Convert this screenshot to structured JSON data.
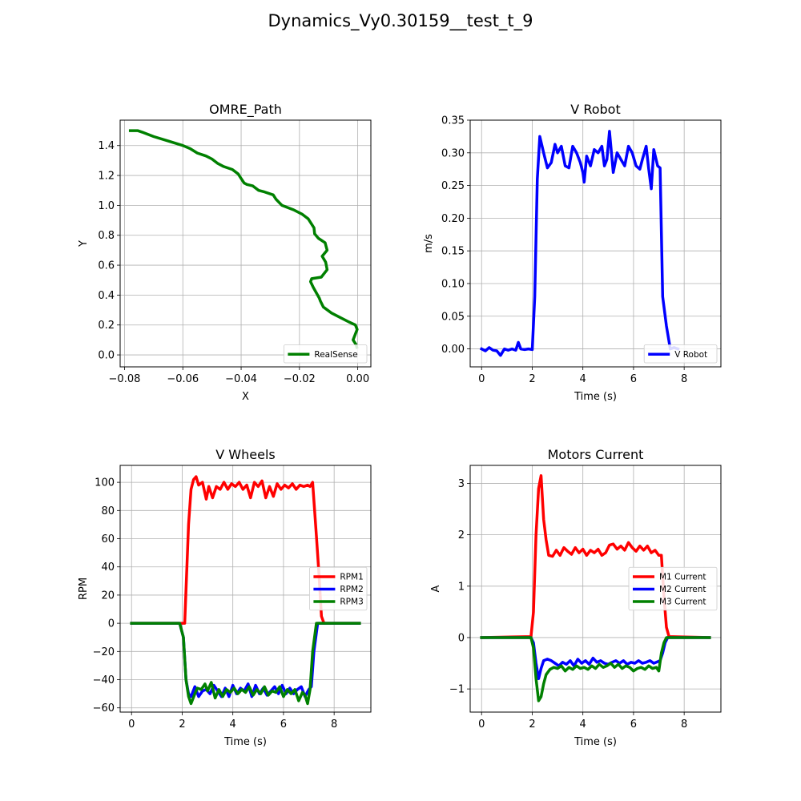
{
  "suptitle": "Dynamics_Vy0.30159__test_t_9",
  "chart_data": [
    {
      "type": "line",
      "title": "OMRE_Path",
      "xlabel": "X",
      "ylabel": "Y",
      "xlim": [
        -0.0815,
        0.0045
      ],
      "ylim": [
        -0.08,
        1.57
      ],
      "xticks": [
        -0.08,
        -0.06,
        -0.04,
        -0.02,
        0.0
      ],
      "xtick_labels": [
        "−0.08",
        "−0.06",
        "−0.04",
        "−0.02",
        "0.00"
      ],
      "yticks": [
        0.0,
        0.2,
        0.4,
        0.6,
        0.8,
        1.0,
        1.2,
        1.4
      ],
      "ytick_labels": [
        "0.0",
        "0.2",
        "0.4",
        "0.6",
        "0.8",
        "1.0",
        "1.2",
        "1.4"
      ],
      "grid": true,
      "legend_position": "lower-right",
      "series": [
        {
          "name": "RealSense",
          "color": "#008000",
          "x": [
            -0.078,
            -0.0755,
            -0.074,
            -0.07,
            -0.065,
            -0.06,
            -0.0575,
            -0.055,
            -0.052,
            -0.05,
            -0.048,
            -0.046,
            -0.043,
            -0.041,
            -0.04,
            -0.039,
            -0.038,
            -0.036,
            -0.034,
            -0.032,
            -0.029,
            -0.028,
            -0.027,
            -0.026,
            -0.022,
            -0.019,
            -0.017,
            -0.016,
            -0.015,
            -0.0148,
            -0.0135,
            -0.0112,
            -0.0105,
            -0.0122,
            -0.011,
            -0.0105,
            -0.0125,
            -0.0158,
            -0.0162,
            -0.0152,
            -0.0132,
            -0.0128,
            -0.0118,
            -0.009,
            -0.006,
            -0.003,
            -0.0008,
            -0.0002,
            -0.0016,
            -0.0006,
            -0.0003
          ],
          "y": [
            1.5,
            1.5,
            1.49,
            1.46,
            1.43,
            1.4,
            1.38,
            1.35,
            1.33,
            1.31,
            1.28,
            1.26,
            1.24,
            1.21,
            1.18,
            1.15,
            1.14,
            1.13,
            1.1,
            1.09,
            1.07,
            1.04,
            1.02,
            1.0,
            0.97,
            0.94,
            0.91,
            0.88,
            0.85,
            0.81,
            0.78,
            0.75,
            0.7,
            0.66,
            0.62,
            0.57,
            0.52,
            0.51,
            0.49,
            0.45,
            0.38,
            0.36,
            0.32,
            0.28,
            0.25,
            0.22,
            0.2,
            0.17,
            0.1,
            0.07,
            0.05
          ]
        }
      ]
    },
    {
      "type": "line",
      "title": "V Robot",
      "xlabel": "Time (s)",
      "ylabel": "m/s",
      "xlim": [
        -0.45,
        9.45
      ],
      "ylim": [
        -0.0275,
        0.35
      ],
      "xticks": [
        0,
        2,
        4,
        6,
        8
      ],
      "xtick_labels": [
        "0",
        "2",
        "4",
        "6",
        "8"
      ],
      "yticks": [
        0.0,
        0.05,
        0.1,
        0.15,
        0.2,
        0.25,
        0.3,
        0.35
      ],
      "ytick_labels": [
        "0.00",
        "0.05",
        "0.10",
        "0.15",
        "0.20",
        "0.25",
        "0.30",
        "0.35"
      ],
      "grid": true,
      "legend_position": "lower-right",
      "series": [
        {
          "name": "V Robot",
          "color": "#0000ff",
          "x": [
            0.0,
            0.15,
            0.3,
            0.45,
            0.6,
            0.75,
            0.9,
            1.05,
            1.2,
            1.35,
            1.45,
            1.55,
            1.7,
            1.85,
            2.0,
            2.1,
            2.2,
            2.3,
            2.45,
            2.6,
            2.75,
            2.9,
            3.0,
            3.15,
            3.3,
            3.45,
            3.6,
            3.75,
            3.9,
            4.0,
            4.05,
            4.15,
            4.3,
            4.45,
            4.6,
            4.75,
            4.85,
            4.95,
            5.05,
            5.2,
            5.35,
            5.5,
            5.65,
            5.8,
            5.95,
            6.1,
            6.25,
            6.35,
            6.5,
            6.6,
            6.7,
            6.8,
            6.95,
            7.05,
            7.15,
            7.3,
            7.45,
            7.6,
            7.75
          ],
          "y": [
            0.0,
            -0.003,
            0.002,
            -0.002,
            -0.003,
            -0.01,
            0.0,
            -0.002,
            0.0,
            -0.002,
            0.01,
            0.0,
            -0.001,
            0.0,
            -0.001,
            0.08,
            0.26,
            0.325,
            0.3,
            0.277,
            0.285,
            0.313,
            0.3,
            0.31,
            0.28,
            0.277,
            0.31,
            0.3,
            0.285,
            0.27,
            0.255,
            0.295,
            0.28,
            0.305,
            0.3,
            0.31,
            0.28,
            0.29,
            0.333,
            0.27,
            0.3,
            0.29,
            0.28,
            0.31,
            0.3,
            0.28,
            0.275,
            0.29,
            0.31,
            0.275,
            0.245,
            0.305,
            0.28,
            0.277,
            0.08,
            0.035,
            0.0,
            0.002,
            0.0
          ]
        }
      ]
    },
    {
      "type": "line",
      "title": "V Wheels",
      "xlabel": "Time (s)",
      "ylabel": "RPM",
      "xlim": [
        -0.45,
        9.45
      ],
      "ylim": [
        -63,
        112
      ],
      "xticks": [
        0,
        2,
        4,
        6,
        8
      ],
      "xtick_labels": [
        "0",
        "2",
        "4",
        "6",
        "8"
      ],
      "yticks": [
        -60,
        -40,
        -20,
        0,
        20,
        40,
        60,
        80,
        100
      ],
      "ytick_labels": [
        "−60",
        "−40",
        "−20",
        "0",
        "20",
        "40",
        "60",
        "80",
        "100"
      ],
      "grid": true,
      "legend_position": "center-right",
      "series": [
        {
          "name": "RPM1",
          "color": "#ff0000",
          "x": [
            0,
            1.95,
            2.1,
            2.25,
            2.35,
            2.45,
            2.55,
            2.65,
            2.8,
            2.95,
            3.05,
            3.2,
            3.35,
            3.5,
            3.65,
            3.8,
            3.95,
            4.1,
            4.25,
            4.4,
            4.55,
            4.7,
            4.85,
            5.0,
            5.15,
            5.3,
            5.45,
            5.6,
            5.75,
            5.9,
            6.05,
            6.2,
            6.35,
            6.5,
            6.65,
            6.8,
            6.95,
            7.05,
            7.15,
            7.3,
            7.4,
            7.5,
            7.6,
            9.0
          ],
          "y": [
            0,
            0,
            0,
            70,
            95,
            102,
            104,
            98,
            100,
            88,
            97,
            89,
            97,
            95,
            100,
            95,
            99,
            97,
            100,
            95,
            98,
            89,
            100,
            97,
            101,
            89,
            97,
            90,
            99,
            95,
            98,
            96,
            99,
            95,
            98,
            97,
            98,
            97,
            100,
            62,
            35,
            5,
            0,
            0
          ]
        },
        {
          "name": "RPM2",
          "color": "#0000ff",
          "x": [
            0,
            1.9,
            2.05,
            2.15,
            2.25,
            2.35,
            2.5,
            2.65,
            2.8,
            2.95,
            3.1,
            3.25,
            3.4,
            3.55,
            3.7,
            3.85,
            4.0,
            4.15,
            4.3,
            4.45,
            4.6,
            4.75,
            4.9,
            5.05,
            5.2,
            5.35,
            5.5,
            5.65,
            5.8,
            5.95,
            6.1,
            6.25,
            6.4,
            6.55,
            6.7,
            6.85,
            7.0,
            7.1,
            7.2,
            7.35,
            9.0
          ],
          "y": [
            0,
            0,
            -10,
            -40,
            -50,
            -52,
            -45,
            -52,
            -48,
            -47,
            -50,
            -44,
            -48,
            -52,
            -46,
            -52,
            -44,
            -50,
            -46,
            -48,
            -43,
            -52,
            -44,
            -50,
            -46,
            -51,
            -48,
            -45,
            -50,
            -44,
            -50,
            -46,
            -50,
            -47,
            -45,
            -52,
            -47,
            -45,
            -20,
            0,
            0
          ]
        },
        {
          "name": "RPM3",
          "color": "#008000",
          "x": [
            0,
            1.9,
            2.05,
            2.15,
            2.25,
            2.35,
            2.5,
            2.6,
            2.75,
            2.9,
            3.0,
            3.15,
            3.3,
            3.45,
            3.6,
            3.75,
            3.9,
            4.05,
            4.2,
            4.35,
            4.5,
            4.65,
            4.8,
            4.95,
            5.1,
            5.25,
            5.4,
            5.55,
            5.7,
            5.85,
            6.0,
            6.15,
            6.3,
            6.45,
            6.6,
            6.75,
            6.85,
            6.95,
            7.05,
            7.15,
            7.3,
            9.0
          ],
          "y": [
            0,
            0,
            -10,
            -40,
            -52,
            -57,
            -50,
            -46,
            -47,
            -43,
            -48,
            -42,
            -53,
            -47,
            -52,
            -47,
            -49,
            -46,
            -50,
            -47,
            -49,
            -45,
            -51,
            -47,
            -50,
            -45,
            -51,
            -48,
            -49,
            -45,
            -52,
            -47,
            -50,
            -47,
            -55,
            -49,
            -51,
            -57,
            -47,
            -20,
            0,
            0
          ]
        }
      ]
    },
    {
      "type": "line",
      "title": "Motors Current",
      "xlabel": "Time (s)",
      "ylabel": "A",
      "xlim": [
        -0.45,
        9.45
      ],
      "ylim": [
        -1.45,
        3.35
      ],
      "xticks": [
        0,
        2,
        4,
        6,
        8
      ],
      "xtick_labels": [
        "0",
        "2",
        "4",
        "6",
        "8"
      ],
      "yticks": [
        -1,
        0,
        1,
        2,
        3
      ],
      "ytick_labels": [
        "−1",
        "0",
        "1",
        "2",
        "3"
      ],
      "grid": true,
      "legend_position": "center-right",
      "series": [
        {
          "name": "M1 Current",
          "color": "#ff0000",
          "x": [
            0,
            1.95,
            2.05,
            2.15,
            2.25,
            2.35,
            2.45,
            2.55,
            2.65,
            2.8,
            2.95,
            3.1,
            3.25,
            3.4,
            3.55,
            3.7,
            3.85,
            4.0,
            4.15,
            4.3,
            4.45,
            4.6,
            4.75,
            4.9,
            5.05,
            5.2,
            5.35,
            5.5,
            5.65,
            5.8,
            5.95,
            6.1,
            6.25,
            6.4,
            6.55,
            6.7,
            6.85,
            7.0,
            7.1,
            7.2,
            7.3,
            7.4,
            9.0
          ],
          "y": [
            0,
            0.02,
            0.5,
            2.0,
            2.9,
            3.15,
            2.3,
            1.9,
            1.6,
            1.58,
            1.7,
            1.6,
            1.75,
            1.68,
            1.62,
            1.75,
            1.65,
            1.72,
            1.6,
            1.7,
            1.65,
            1.72,
            1.6,
            1.65,
            1.8,
            1.82,
            1.72,
            1.78,
            1.7,
            1.85,
            1.75,
            1.68,
            1.78,
            1.7,
            1.78,
            1.65,
            1.7,
            1.6,
            1.6,
            0.8,
            0.2,
            0.02,
            0
          ]
        },
        {
          "name": "M2 Current",
          "color": "#0000ff",
          "x": [
            0,
            1.95,
            2.05,
            2.15,
            2.25,
            2.35,
            2.45,
            2.6,
            2.75,
            2.9,
            3.05,
            3.2,
            3.35,
            3.5,
            3.65,
            3.8,
            3.95,
            4.1,
            4.25,
            4.4,
            4.55,
            4.7,
            4.85,
            5.0,
            5.15,
            5.3,
            5.45,
            5.6,
            5.75,
            5.9,
            6.05,
            6.2,
            6.35,
            6.5,
            6.65,
            6.8,
            6.95,
            7.05,
            7.15,
            7.25,
            7.35,
            9.0
          ],
          "y": [
            0,
            0,
            -0.1,
            -0.5,
            -0.8,
            -0.6,
            -0.45,
            -0.42,
            -0.45,
            -0.5,
            -0.55,
            -0.48,
            -0.52,
            -0.45,
            -0.55,
            -0.42,
            -0.5,
            -0.45,
            -0.52,
            -0.4,
            -0.48,
            -0.45,
            -0.5,
            -0.52,
            -0.48,
            -0.45,
            -0.5,
            -0.45,
            -0.52,
            -0.48,
            -0.5,
            -0.45,
            -0.5,
            -0.48,
            -0.45,
            -0.5,
            -0.47,
            -0.45,
            -0.3,
            -0.1,
            0,
            0
          ]
        },
        {
          "name": "M3 Current",
          "color": "#008000",
          "x": [
            0,
            1.95,
            2.05,
            2.15,
            2.25,
            2.35,
            2.45,
            2.55,
            2.7,
            2.85,
            3.0,
            3.15,
            3.3,
            3.45,
            3.6,
            3.75,
            3.9,
            4.05,
            4.2,
            4.35,
            4.5,
            4.65,
            4.8,
            4.95,
            5.1,
            5.25,
            5.4,
            5.55,
            5.7,
            5.85,
            6.0,
            6.15,
            6.3,
            6.45,
            6.6,
            6.75,
            6.9,
            7.0,
            7.1,
            7.2,
            7.3,
            9.0
          ],
          "y": [
            0,
            0,
            -0.2,
            -0.8,
            -1.23,
            -1.15,
            -0.9,
            -0.72,
            -0.62,
            -0.58,
            -0.6,
            -0.55,
            -0.65,
            -0.58,
            -0.62,
            -0.55,
            -0.6,
            -0.58,
            -0.62,
            -0.55,
            -0.6,
            -0.52,
            -0.58,
            -0.55,
            -0.5,
            -0.58,
            -0.52,
            -0.6,
            -0.55,
            -0.58,
            -0.65,
            -0.6,
            -0.58,
            -0.62,
            -0.55,
            -0.6,
            -0.58,
            -0.65,
            -0.3,
            -0.1,
            0,
            0
          ]
        }
      ]
    }
  ]
}
